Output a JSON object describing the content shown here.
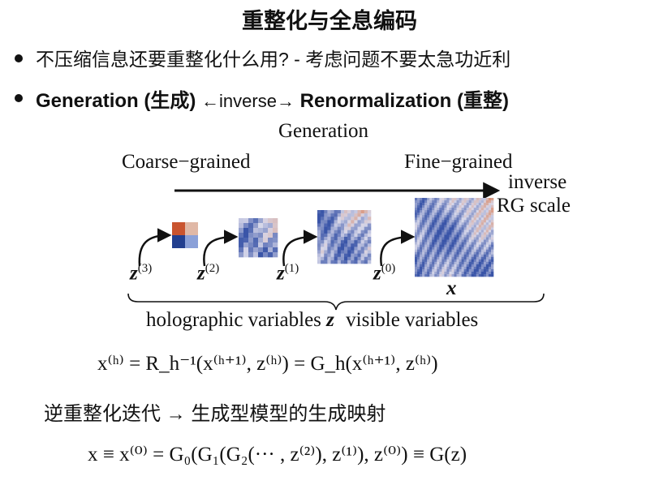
{
  "title": "重整化与全息编码",
  "bullets": {
    "first": "不压缩信息还要重整化什么用? - 考虑问题不要太急功近利",
    "second_left": "Generation (生成)",
    "second_arrow_left": "←",
    "second_inverse": "inverse",
    "second_arrow_right": "→",
    "second_right": "Renormalization (重整)"
  },
  "diagram": {
    "generation": "Generation",
    "coarse": "Coarse−grained",
    "fine": "Fine−grained",
    "inverse": "inverse",
    "rg_scale": "RG scale",
    "z3": "z",
    "z3_sup": "(3)",
    "z2": "z",
    "z2_sup": "(2)",
    "z1": "z",
    "z1_sup": "(1)",
    "z0": "z",
    "z0_sup": "(0)",
    "x": "x",
    "holo_label": "holographic variables",
    "holo_z": "z",
    "visible_label": "visible variables",
    "colors": {
      "warm": "#d9774a",
      "cool": "#3a55a8",
      "neutral": "#d8d8ea"
    }
  },
  "equation1": "x⁽ʰ⁾ = R_h⁻¹(x⁽ʰ⁺¹⁾, z⁽ʰ⁾) = G_h(x⁽ʰ⁺¹⁾, z⁽ʰ⁾)",
  "chinese_line": "逆重整化迭代 → 生成型模型的生成映射",
  "equation2": "x ≡ x⁽⁰⁾ = G₀(G₁(G₂(··· , z⁽²⁾), z⁽¹⁾), z⁽⁰⁾) ≡ G(z)"
}
